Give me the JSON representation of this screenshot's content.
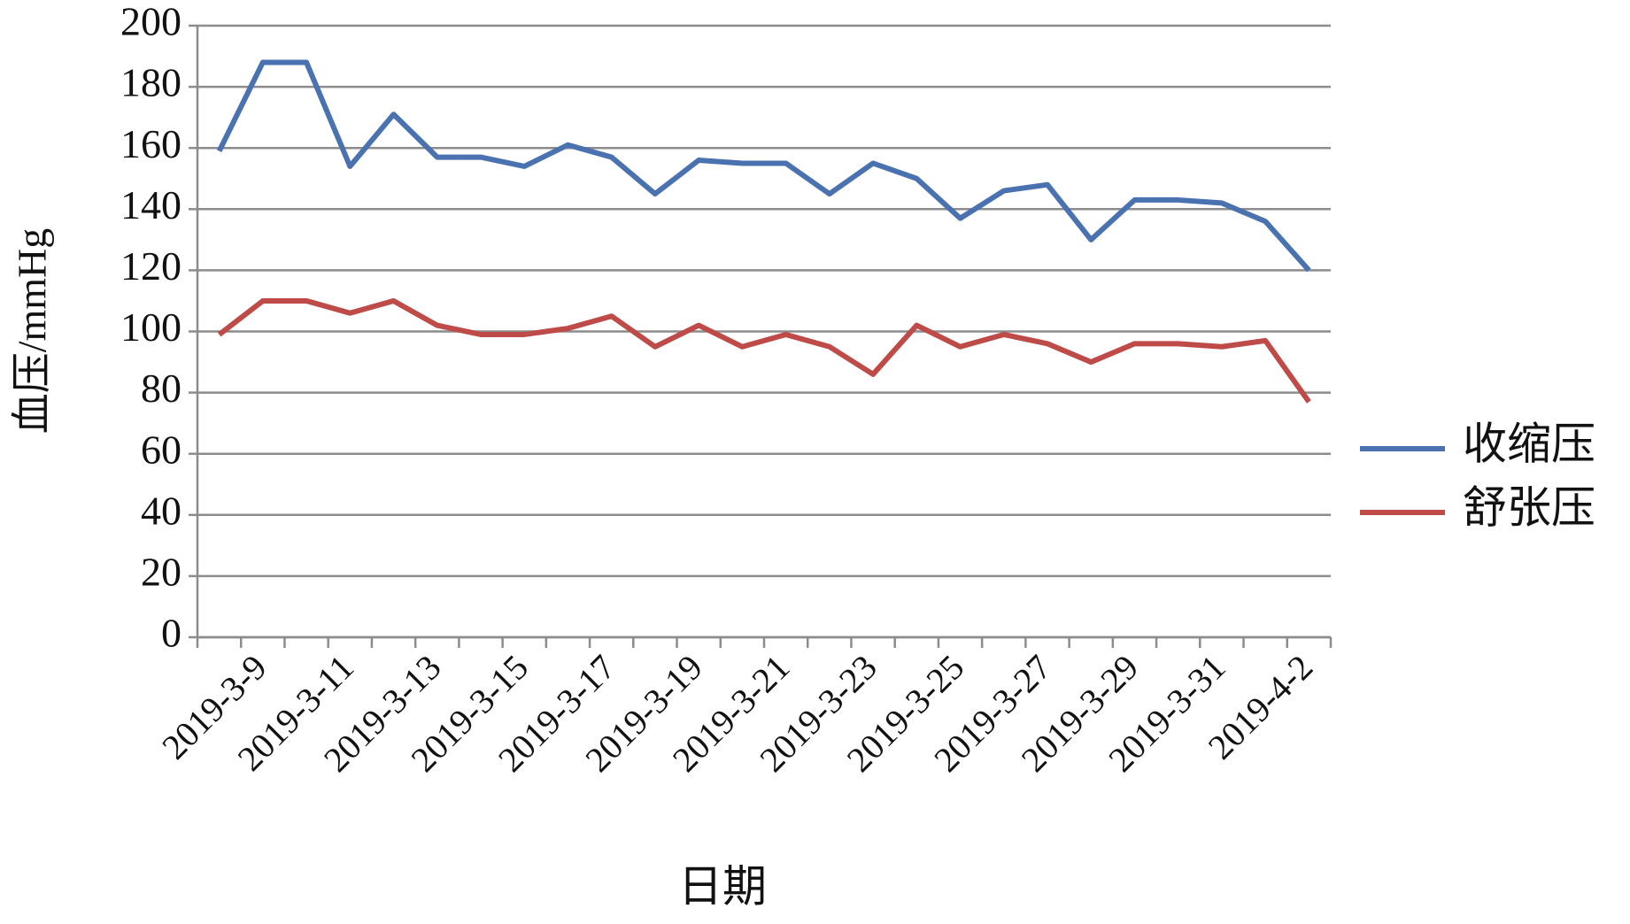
{
  "chart_data": {
    "type": "line",
    "y_label": "血压/mmHg",
    "x_label": "日期",
    "categories": [
      null,
      "2019-3-9",
      null,
      "2019-3-11",
      null,
      "2019-3-13",
      null,
      "2019-3-15",
      null,
      "2019-3-17",
      null,
      "2019-3-19",
      null,
      "2019-3-21",
      null,
      "2019-3-23",
      null,
      "2019-3-25",
      null,
      "2019-3-27",
      null,
      "2019-3-29",
      null,
      "2019-3-31",
      null,
      "2019-4-2"
    ],
    "series": [
      {
        "name": "收缩压",
        "color": "#4a72b0",
        "values": [
          159,
          188,
          188,
          154,
          171,
          157,
          157,
          154,
          161,
          157,
          145,
          156,
          155,
          155,
          145,
          155,
          150,
          137,
          146,
          148,
          130,
          143,
          143,
          142,
          136,
          120
        ]
      },
      {
        "name": "舒张压",
        "color": "#be4b48",
        "values": [
          99,
          110,
          110,
          106,
          110,
          102,
          99,
          99,
          101,
          105,
          95,
          102,
          95,
          99,
          95,
          86,
          102,
          95,
          99,
          96,
          90,
          96,
          96,
          95,
          97,
          77
        ]
      }
    ],
    "ylim": [
      0,
      200
    ],
    "yticks": [
      0,
      20,
      40,
      60,
      80,
      100,
      120,
      140,
      160,
      180,
      200
    ],
    "grid": true,
    "legend": "right"
  }
}
